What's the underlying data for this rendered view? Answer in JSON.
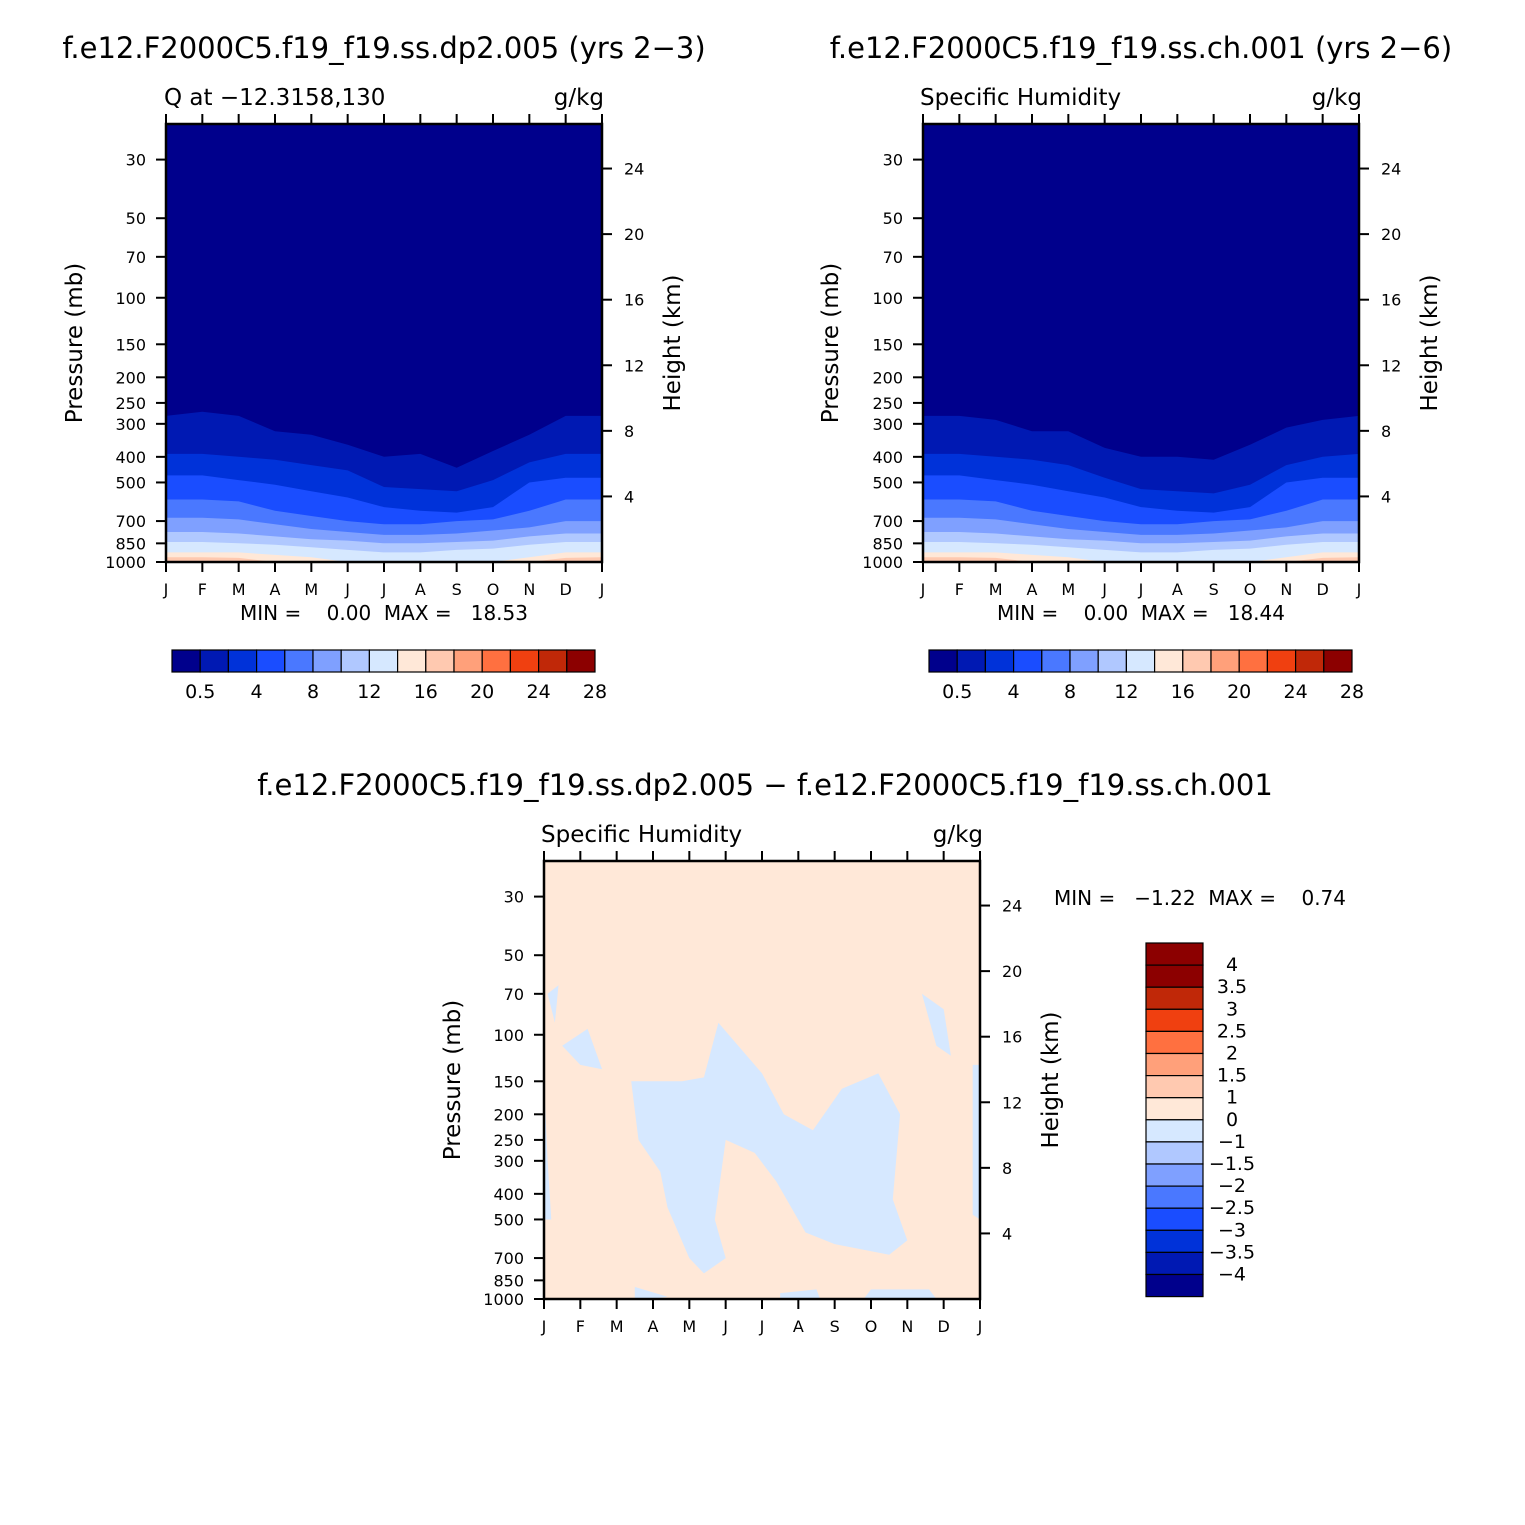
{
  "colors": {
    "fill_palette": [
      "#00008c",
      "#0019b3",
      "#0032d9",
      "#1a4dff",
      "#4a78ff",
      "#7fa0ff",
      "#b0c8ff",
      "#d6e8ff",
      "#ffe8d8",
      "#ffc9b0",
      "#ffa07a",
      "#ff7040",
      "#f04010",
      "#c02808",
      "#8c0000"
    ],
    "diff_palette": [
      "#00008c",
      "#0019b3",
      "#0032d9",
      "#1a4dff",
      "#4a78ff",
      "#7fa0ff",
      "#b0c8ff",
      "#d6e8ff",
      "#ffe8d8",
      "#ffc9b0",
      "#ffa07a",
      "#ff7040",
      "#f04010",
      "#c02808",
      "#8c0000"
    ]
  },
  "chart_data": [
    {
      "type": "contour",
      "title": "f.e12.F2000C5.f19_f19.ss.dp2.005 (yrs 2−3)",
      "left_label": "Q at −12.3158,130",
      "units": "g/kg",
      "ylabel": "Pressure (mb)",
      "y2label": "Height (km)",
      "months": [
        "J",
        "F",
        "M",
        "A",
        "M",
        "J",
        "J",
        "A",
        "S",
        "O",
        "N",
        "D",
        "J"
      ],
      "pressure_ticks": [
        "30",
        "50",
        "70",
        "100",
        "150",
        "200",
        "250",
        "300",
        "400",
        "500",
        "700",
        "850",
        "1000"
      ],
      "pressure_values": [
        30,
        50,
        70,
        100,
        150,
        200,
        250,
        300,
        400,
        500,
        700,
        850,
        1000
      ],
      "height_ticks": [
        "4",
        "8",
        "12",
        "16",
        "20",
        "24"
      ],
      "height_values": [
        4,
        8,
        12,
        16,
        20,
        24
      ],
      "stats": "MIN =    0.00  MAX =   18.53",
      "colorbar_labels": [
        "0.5",
        "4",
        "8",
        "12",
        "16",
        "20",
        "24",
        "28"
      ],
      "contour_boundaries_p": [
        [
          280,
          270,
          280,
          320,
          330,
          360,
          400,
          390,
          440,
          380,
          330,
          280,
          280
        ],
        [
          390,
          390,
          400,
          410,
          430,
          450,
          520,
          530,
          540,
          490,
          420,
          390,
          390
        ],
        [
          470,
          470,
          490,
          510,
          540,
          570,
          620,
          640,
          650,
          620,
          500,
          480,
          480
        ],
        [
          580,
          580,
          590,
          640,
          670,
          700,
          720,
          720,
          700,
          690,
          640,
          580,
          580
        ],
        [
          680,
          680,
          690,
          720,
          750,
          770,
          790,
          790,
          780,
          760,
          740,
          700,
          700
        ],
        [
          770,
          770,
          780,
          800,
          820,
          830,
          850,
          850,
          840,
          830,
          800,
          780,
          780
        ],
        [
          840,
          840,
          850,
          860,
          880,
          900,
          920,
          920,
          900,
          890,
          860,
          840,
          840
        ],
        [
          920,
          920,
          920,
          940,
          960,
          1000,
          1000,
          1000,
          1000,
          1000,
          960,
          920,
          920
        ],
        [
          960,
          960,
          965,
          1000,
          1000,
          1000,
          1000,
          1000,
          1000,
          1000,
          1000,
          965,
          960
        ]
      ]
    },
    {
      "type": "contour",
      "title": "f.e12.F2000C5.f19_f19.ss.ch.001 (yrs 2−6)",
      "left_label": "Specific Humidity",
      "units": "g/kg",
      "ylabel": "Pressure (mb)",
      "y2label": "Height (km)",
      "months": [
        "J",
        "F",
        "M",
        "A",
        "M",
        "J",
        "J",
        "A",
        "S",
        "O",
        "N",
        "D",
        "J"
      ],
      "pressure_ticks": [
        "30",
        "50",
        "70",
        "100",
        "150",
        "200",
        "250",
        "300",
        "400",
        "500",
        "700",
        "850",
        "1000"
      ],
      "pressure_values": [
        30,
        50,
        70,
        100,
        150,
        200,
        250,
        300,
        400,
        500,
        700,
        850,
        1000
      ],
      "height_ticks": [
        "4",
        "8",
        "12",
        "16",
        "20",
        "24"
      ],
      "height_values": [
        4,
        8,
        12,
        16,
        20,
        24
      ],
      "stats": "MIN =    0.00  MAX =   18.44",
      "colorbar_labels": [
        "0.5",
        "4",
        "8",
        "12",
        "16",
        "20",
        "24",
        "28"
      ],
      "contour_boundaries_p": [
        [
          280,
          280,
          290,
          320,
          320,
          370,
          400,
          400,
          410,
          360,
          310,
          290,
          280
        ],
        [
          390,
          390,
          400,
          410,
          430,
          480,
          530,
          540,
          550,
          510,
          430,
          400,
          390
        ],
        [
          470,
          470,
          490,
          510,
          540,
          570,
          620,
          640,
          650,
          620,
          500,
          480,
          480
        ],
        [
          580,
          580,
          590,
          640,
          670,
          700,
          720,
          720,
          700,
          690,
          640,
          580,
          580
        ],
        [
          680,
          680,
          690,
          720,
          750,
          770,
          790,
          790,
          780,
          760,
          740,
          700,
          700
        ],
        [
          770,
          770,
          780,
          800,
          820,
          830,
          850,
          850,
          840,
          830,
          800,
          780,
          780
        ],
        [
          840,
          840,
          850,
          860,
          880,
          900,
          920,
          920,
          900,
          890,
          860,
          840,
          840
        ],
        [
          920,
          920,
          920,
          940,
          960,
          1000,
          1000,
          1000,
          1000,
          1000,
          960,
          920,
          920
        ],
        [
          960,
          960,
          965,
          1000,
          1000,
          1000,
          1000,
          1000,
          1000,
          1000,
          1000,
          965,
          960
        ]
      ]
    },
    {
      "type": "contour",
      "title": "f.e12.F2000C5.f19_f19.ss.dp2.005 − f.e12.F2000C5.f19_f19.ss.ch.001",
      "left_label": "Specific Humidity",
      "units": "g/kg",
      "ylabel": "Pressure (mb)",
      "y2label": "Height (km)",
      "months": [
        "J",
        "F",
        "M",
        "A",
        "M",
        "J",
        "J",
        "A",
        "S",
        "O",
        "N",
        "D",
        "J"
      ],
      "pressure_ticks": [
        "30",
        "50",
        "70",
        "100",
        "150",
        "200",
        "250",
        "300",
        "400",
        "500",
        "700",
        "850",
        "1000"
      ],
      "pressure_values": [
        30,
        50,
        70,
        100,
        150,
        200,
        250,
        300,
        400,
        500,
        700,
        850,
        1000
      ],
      "height_ticks": [
        "4",
        "8",
        "12",
        "16",
        "20",
        "24"
      ],
      "height_values": [
        4,
        8,
        12,
        16,
        20,
        24
      ],
      "stats": "MIN =   −1.22  MAX =    0.74",
      "colorbar_labels": [
        "4",
        "3.5",
        "3",
        "2.5",
        "2",
        "1.5",
        "1",
        "0",
        "−1",
        "−1.5",
        "−2",
        "−2.5",
        "−3",
        "−3.5",
        "−4"
      ],
      "background_range": "0 to 1",
      "negative_regions_range": "−1 to 0",
      "negative_regions": [
        [
          [
            0.1,
            70
          ],
          [
            0.4,
            65
          ],
          [
            0.3,
            90
          ]
        ],
        [
          [
            0.5,
            110
          ],
          [
            1.2,
            95
          ],
          [
            1.6,
            135
          ],
          [
            1.0,
            130
          ]
        ],
        [
          [
            2.4,
            150
          ],
          [
            3.8,
            150
          ],
          [
            4.4,
            145
          ],
          [
            4.8,
            90
          ],
          [
            6.0,
            140
          ],
          [
            6.6,
            200
          ],
          [
            7.4,
            230
          ],
          [
            8.2,
            160
          ],
          [
            9.2,
            140
          ],
          [
            9.8,
            200
          ],
          [
            9.6,
            420
          ],
          [
            10.0,
            600
          ],
          [
            9.5,
            680
          ],
          [
            8.0,
            620
          ],
          [
            7.2,
            560
          ],
          [
            6.4,
            360
          ],
          [
            5.8,
            280
          ],
          [
            5.0,
            250
          ],
          [
            4.7,
            500
          ],
          [
            5.0,
            700
          ],
          [
            4.4,
            800
          ],
          [
            4.0,
            700
          ],
          [
            3.4,
            450
          ],
          [
            3.2,
            330
          ],
          [
            2.6,
            250
          ]
        ],
        [
          [
            2.5,
            900
          ],
          [
            3.4,
            980
          ],
          [
            3.0,
            1000
          ],
          [
            2.5,
            1000
          ]
        ],
        [
          [
            6.5,
            950
          ],
          [
            7.5,
            920
          ],
          [
            7.6,
            1000
          ],
          [
            6.5,
            1000
          ]
        ],
        [
          [
            9.0,
            920
          ],
          [
            10.6,
            920
          ],
          [
            10.8,
            1000
          ],
          [
            8.8,
            1000
          ]
        ],
        [
          [
            10.4,
            70
          ],
          [
            11.0,
            80
          ],
          [
            11.2,
            120
          ],
          [
            10.8,
            110
          ]
        ],
        [
          [
            11.8,
            130
          ],
          [
            12.0,
            130
          ],
          [
            12.0,
            500
          ],
          [
            11.8,
            480
          ]
        ],
        [
          [
            0.0,
            150
          ],
          [
            0.1,
            300
          ],
          [
            0.2,
            500
          ],
          [
            0.0,
            500
          ]
        ]
      ]
    }
  ]
}
